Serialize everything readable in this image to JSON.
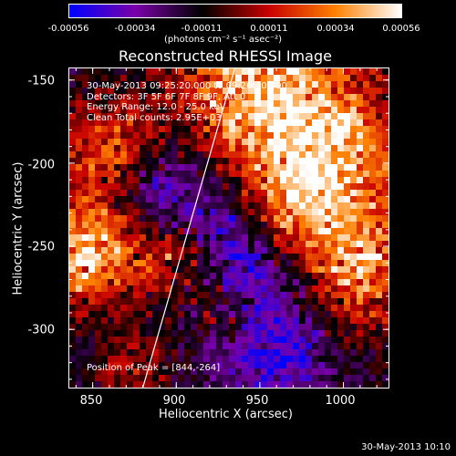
{
  "colorbar": {
    "ticks": [
      "-0.00056",
      "-0.00034",
      "-0.00011",
      "0.00011",
      "0.00034",
      "0.00056"
    ],
    "units": "(photons cm⁻² s⁻¹ asec⁻²)"
  },
  "title": "Reconstructed RHESSI Image",
  "info": {
    "time": "30-May-2013 09:25:20.000 to 09:26:40.000",
    "detectors": "Detectors: 3F 5F 6F 7F 8F 9F, Att 0",
    "energy": "Energy Range: 12.0 - 25.0 keV",
    "clean": "Clean     Total counts: 2.95E+03",
    "peak": "Position of Peak = [844,-264]"
  },
  "timestamp": "30-May-2013 10:10",
  "chart_data": {
    "type": "heatmap",
    "title": "Reconstructed RHESSI Image",
    "xlabel": "Heliocentric X (arcsec)",
    "ylabel": "Heliocentric Y (arcsec)",
    "xlim": [
      836,
      1027
    ],
    "ylim": [
      -335,
      -143
    ],
    "x_ticks": [
      "850",
      "900",
      "950",
      "1000"
    ],
    "y_ticks": [
      "-150",
      "-200",
      "-250",
      "-300"
    ],
    "colorbar_range": [
      -0.00056,
      0.00056
    ],
    "colormap": [
      "#0000ff",
      "#7a00a8",
      "#000000",
      "#c80000",
      "#ff8000",
      "#ffffff"
    ],
    "limb_line": [
      [
        880,
        -335
      ],
      [
        935,
        -143
      ]
    ]
  }
}
